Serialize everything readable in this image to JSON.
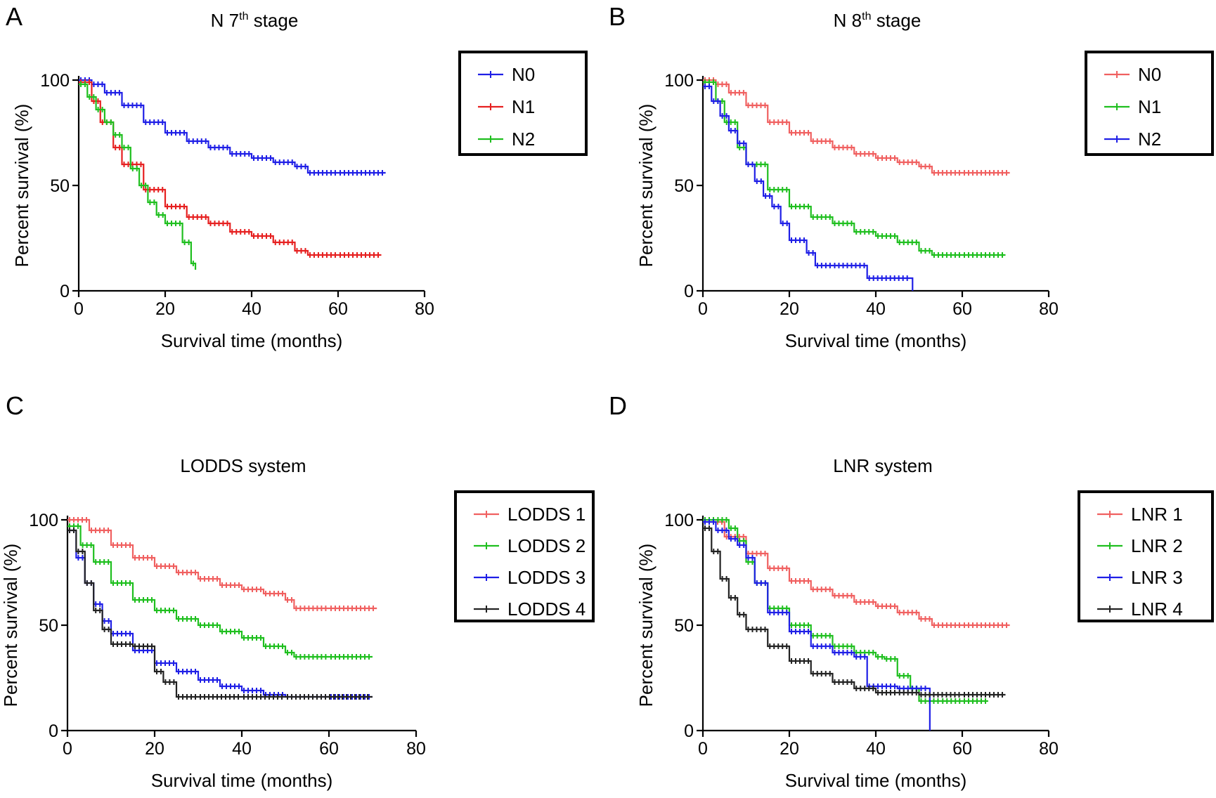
{
  "chart_data": [
    {
      "type": "line",
      "panel": "A",
      "title": "N 7",
      "title_superscript": "th",
      "title_suffix": " stage",
      "xlabel": "Survival time (months)",
      "ylabel": "Percent survival (%)",
      "xlim": [
        0,
        80
      ],
      "ylim": [
        0,
        100
      ],
      "xticks": [
        0,
        20,
        40,
        60,
        80
      ],
      "yticks": [
        0,
        50,
        100
      ],
      "legend_placement": "top-right",
      "series": [
        {
          "name": "N0",
          "color": "#1f1fe6",
          "x": [
            0,
            3,
            6,
            10,
            15,
            20,
            25,
            30,
            35,
            40,
            45,
            50,
            53,
            60,
            71
          ],
          "y": [
            100,
            98,
            94,
            88,
            80,
            75,
            71,
            68,
            65,
            63,
            61,
            59,
            56,
            56,
            56
          ]
        },
        {
          "name": "N1",
          "color": "#e62020",
          "x": [
            0,
            3,
            5,
            8,
            10,
            15,
            20,
            25,
            30,
            35,
            40,
            45,
            50,
            53,
            60,
            70
          ],
          "y": [
            99,
            90,
            80,
            68,
            60,
            48,
            40,
            35,
            32,
            28,
            26,
            23,
            19,
            17,
            17,
            17
          ]
        },
        {
          "name": "N2",
          "color": "#1fbf1f",
          "x": [
            0,
            2,
            4,
            6,
            8,
            10,
            12,
            14,
            16,
            18,
            20,
            24,
            26,
            27
          ],
          "y": [
            98,
            92,
            86,
            80,
            74,
            68,
            58,
            50,
            42,
            36,
            32,
            23,
            13,
            10
          ]
        }
      ]
    },
    {
      "type": "line",
      "panel": "B",
      "title": "N 8",
      "title_superscript": "th",
      "title_suffix": " stage",
      "xlabel": "Survival time (months)",
      "ylabel": "Percent survival (%)",
      "xlim": [
        0,
        80
      ],
      "ylim": [
        0,
        100
      ],
      "xticks": [
        0,
        20,
        40,
        60,
        80
      ],
      "yticks": [
        0,
        50,
        100
      ],
      "legend_placement": "top-right",
      "series": [
        {
          "name": "N0",
          "color": "#f06060",
          "x": [
            0,
            3,
            6,
            10,
            15,
            20,
            25,
            30,
            35,
            40,
            45,
            50,
            53,
            60,
            71
          ],
          "y": [
            100,
            98,
            94,
            88,
            80,
            75,
            71,
            68,
            65,
            63,
            61,
            59,
            56,
            56,
            56
          ]
        },
        {
          "name": "N1",
          "color": "#1fbf1f",
          "x": [
            0,
            3,
            5,
            8,
            10,
            15,
            20,
            25,
            30,
            35,
            40,
            45,
            50,
            53,
            60,
            70
          ],
          "y": [
            99,
            90,
            80,
            68,
            60,
            48,
            40,
            35,
            32,
            28,
            26,
            23,
            19,
            17,
            17,
            17
          ]
        },
        {
          "name": "N2",
          "color": "#1f1fe6",
          "x": [
            0,
            2,
            4,
            6,
            8,
            10,
            12,
            14,
            16,
            18,
            20,
            24,
            26,
            30,
            38,
            48,
            48.5
          ],
          "y": [
            97,
            90,
            83,
            76,
            70,
            60,
            52,
            45,
            40,
            32,
            24,
            18,
            12,
            12,
            6,
            6,
            0
          ]
        }
      ]
    },
    {
      "type": "line",
      "panel": "C",
      "title": "LODDS system",
      "xlabel": "Survival time (months)",
      "ylabel": "Percent survival (%)",
      "xlim": [
        0,
        80
      ],
      "ylim": [
        0,
        100
      ],
      "xticks": [
        0,
        20,
        40,
        60,
        80
      ],
      "yticks": [
        0,
        50,
        100
      ],
      "legend_placement": "top-right",
      "series": [
        {
          "name": "LODDS 1",
          "color": "#f06060",
          "x": [
            0,
            5,
            10,
            15,
            20,
            25,
            30,
            35,
            40,
            45,
            50,
            52,
            60,
            71
          ],
          "y": [
            100,
            95,
            88,
            82,
            78,
            75,
            72,
            69,
            67,
            65,
            62,
            58,
            58,
            58
          ]
        },
        {
          "name": "LODDS 2",
          "color": "#1fbf1f",
          "x": [
            0,
            3,
            6,
            10,
            15,
            20,
            25,
            30,
            35,
            40,
            45,
            50,
            52,
            60,
            70
          ],
          "y": [
            97,
            88,
            80,
            70,
            62,
            57,
            53,
            50,
            47,
            44,
            40,
            37,
            35,
            35,
            35
          ]
        },
        {
          "name": "LODDS 3",
          "color": "#1f1fe6",
          "x": [
            0,
            2,
            4,
            6,
            8,
            10,
            15,
            20,
            25,
            30,
            35,
            40,
            45,
            50,
            60,
            70
          ],
          "y": [
            95,
            82,
            70,
            60,
            52,
            46,
            38,
            32,
            28,
            24,
            21,
            19,
            17,
            16,
            16,
            16
          ]
        },
        {
          "name": "LODDS 4",
          "color": "#222222",
          "x": [
            0,
            2,
            4,
            6,
            8,
            10,
            15,
            20,
            22,
            25,
            30,
            40,
            50,
            70
          ],
          "y": [
            95,
            85,
            70,
            57,
            48,
            41,
            40,
            28,
            23,
            16,
            16,
            16,
            16,
            16
          ]
        }
      ]
    },
    {
      "type": "line",
      "panel": "D",
      "title": "LNR system",
      "xlabel": "Survival time (months)",
      "ylabel": "Percent survival (%)",
      "xlim": [
        0,
        80
      ],
      "ylim": [
        0,
        100
      ],
      "xticks": [
        0,
        20,
        40,
        60,
        80
      ],
      "yticks": [
        0,
        50,
        100
      ],
      "legend_placement": "top-right",
      "series": [
        {
          "name": "LNR 1",
          "color": "#f06060",
          "x": [
            0,
            5,
            10,
            15,
            20,
            25,
            30,
            35,
            40,
            45,
            50,
            53,
            60,
            71
          ],
          "y": [
            99,
            92,
            84,
            77,
            71,
            67,
            64,
            61,
            59,
            56,
            53,
            50,
            50,
            50
          ]
        },
        {
          "name": "LNR 2",
          "color": "#1fbf1f",
          "x": [
            0,
            3,
            6,
            8,
            10,
            12,
            15,
            20,
            25,
            30,
            35,
            40,
            42,
            45,
            48,
            50,
            55,
            60,
            66
          ],
          "y": [
            100,
            100,
            96,
            90,
            80,
            70,
            58,
            50,
            45,
            40,
            37,
            35,
            34,
            26,
            20,
            14,
            14,
            14,
            14
          ]
        },
        {
          "name": "LNR 3",
          "color": "#1f1fe6",
          "x": [
            0,
            3,
            6,
            8,
            10,
            12,
            15,
            20,
            25,
            30,
            35,
            38,
            40,
            45,
            50,
            52,
            52.5
          ],
          "y": [
            99,
            95,
            91,
            88,
            82,
            70,
            56,
            47,
            40,
            37,
            35,
            21,
            21,
            20,
            20,
            20,
            0
          ]
        },
        {
          "name": "LNR 4",
          "color": "#222222",
          "x": [
            0,
            2,
            4,
            6,
            8,
            10,
            15,
            20,
            25,
            30,
            35,
            40,
            45,
            50,
            60,
            70
          ],
          "y": [
            96,
            85,
            72,
            63,
            55,
            48,
            40,
            33,
            27,
            23,
            20,
            18,
            18,
            17,
            17,
            17
          ]
        }
      ]
    }
  ]
}
